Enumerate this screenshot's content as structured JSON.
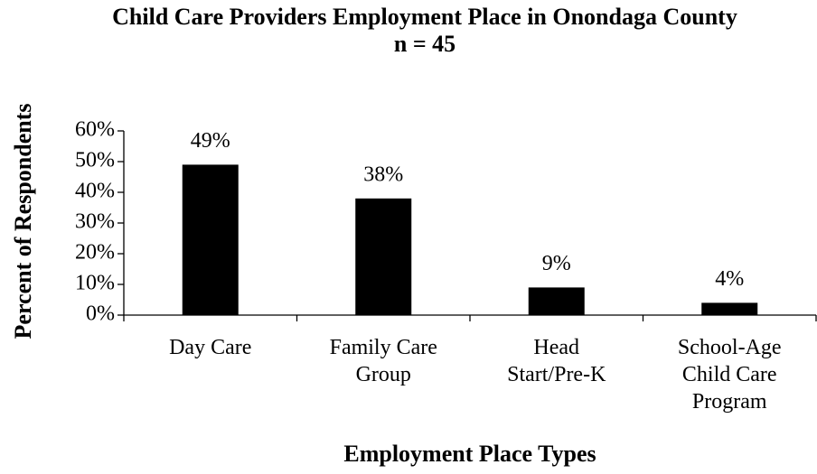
{
  "chart_data": {
    "type": "bar",
    "title": "Child Care Providers Employment Place in Onondaga County",
    "subtitle": "n = 45",
    "x_label": "Employment Place Types",
    "y_label": "Percent of Respondents",
    "categories": [
      "Day Care",
      "Family Care Group",
      "Head Start/Pre-K",
      "School-Age Child Care Program"
    ],
    "values": [
      49,
      38,
      9,
      4
    ],
    "value_labels": [
      "49%",
      "38%",
      "9%",
      "4%"
    ],
    "color": "#000000",
    "ylim": [
      0,
      60
    ],
    "yticks": [
      {
        "value": 0,
        "label": "0%"
      },
      {
        "value": 10,
        "label": "10%"
      },
      {
        "value": 20,
        "label": "20%"
      },
      {
        "value": 30,
        "label": "30%"
      },
      {
        "value": 40,
        "label": "40%"
      },
      {
        "value": 50,
        "label": "50%"
      },
      {
        "value": 60,
        "label": "60%"
      }
    ],
    "grid": false
  }
}
